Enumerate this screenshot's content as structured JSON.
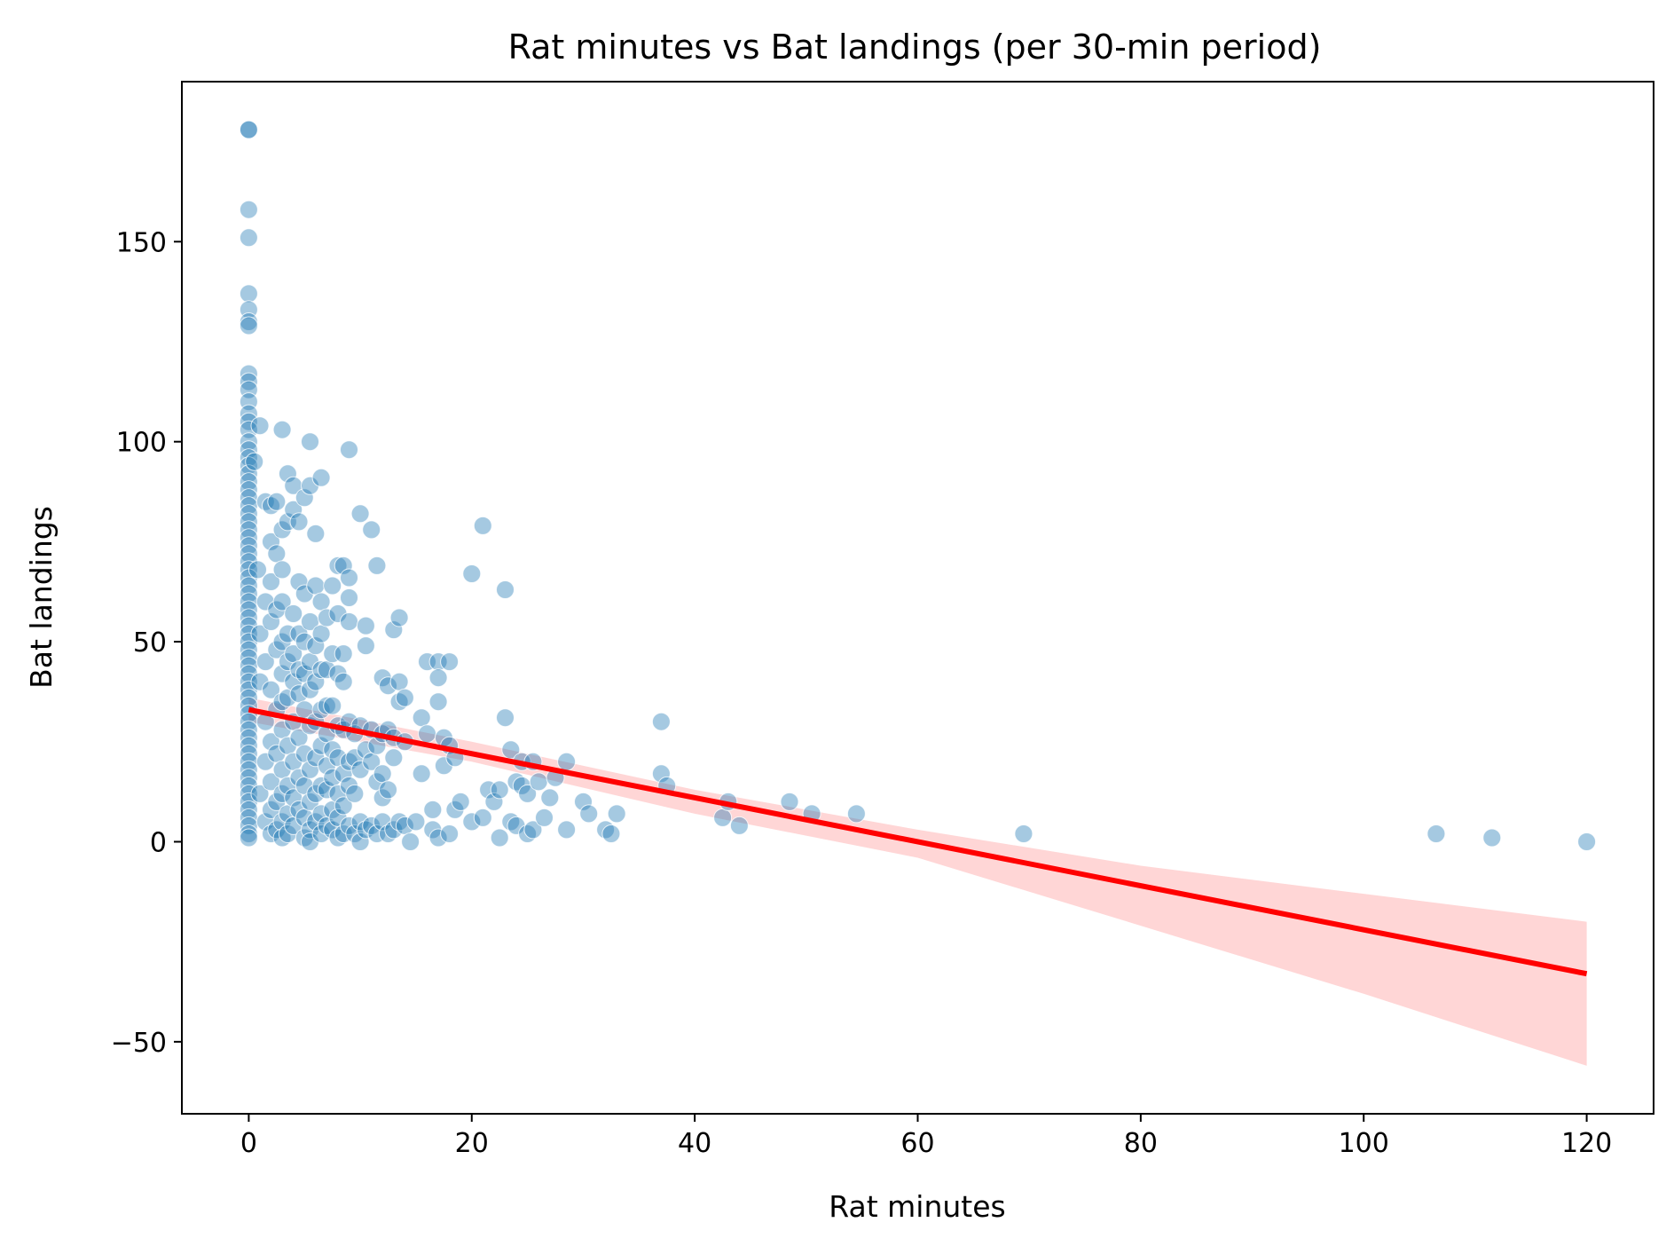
{
  "chart_data": {
    "type": "scatter",
    "title": "Rat minutes vs Bat landings (per 30-min period)",
    "xlabel": "Rat minutes",
    "ylabel": "Bat landings",
    "xlim": [
      -6,
      126
    ],
    "ylim": [
      -68,
      190
    ],
    "xticks": [
      0,
      20,
      40,
      60,
      80,
      100,
      120
    ],
    "yticks": [
      -50,
      0,
      50,
      100,
      150
    ],
    "ytick_labels": [
      "−50",
      "0",
      "50",
      "100",
      "150"
    ],
    "grid": false,
    "colors": {
      "points": "#1f77b4",
      "regression_line": "#ff0000",
      "confidence_band": "#ffcccc"
    },
    "regression": {
      "x": [
        0,
        120
      ],
      "y": [
        33,
        -33
      ],
      "ci_upper": [
        [
          0,
          36
        ],
        [
          20,
          25
        ],
        [
          40,
          13
        ],
        [
          60,
          3
        ],
        [
          80,
          -6
        ],
        [
          100,
          -13
        ],
        [
          120,
          -20
        ]
      ],
      "ci_lower": [
        [
          0,
          30
        ],
        [
          20,
          20
        ],
        [
          40,
          7
        ],
        [
          60,
          -4
        ],
        [
          80,
          -21
        ],
        [
          100,
          -38
        ],
        [
          120,
          -56
        ]
      ]
    },
    "points": [
      [
        0,
        178
      ],
      [
        0,
        178
      ],
      [
        0,
        158
      ],
      [
        0,
        151
      ],
      [
        0,
        137
      ],
      [
        0,
        133
      ],
      [
        0,
        130
      ],
      [
        0,
        129
      ],
      [
        0,
        117
      ],
      [
        0,
        115
      ],
      [
        0,
        113
      ],
      [
        0,
        110
      ],
      [
        0,
        107
      ],
      [
        0,
        105
      ],
      [
        0,
        103
      ],
      [
        0,
        100
      ],
      [
        0,
        98
      ],
      [
        0,
        96
      ],
      [
        0,
        94
      ],
      [
        0,
        92
      ],
      [
        0,
        90
      ],
      [
        0,
        88
      ],
      [
        0,
        86
      ],
      [
        0,
        84
      ],
      [
        0,
        82
      ],
      [
        0,
        80
      ],
      [
        0,
        78
      ],
      [
        0,
        76
      ],
      [
        0,
        74
      ],
      [
        0,
        72
      ],
      [
        0,
        70
      ],
      [
        0,
        68
      ],
      [
        0,
        66
      ],
      [
        0,
        64
      ],
      [
        0,
        62
      ],
      [
        0,
        60
      ],
      [
        0,
        58
      ],
      [
        0,
        56
      ],
      [
        0,
        54
      ],
      [
        0,
        52
      ],
      [
        0,
        50
      ],
      [
        0,
        48
      ],
      [
        0,
        46
      ],
      [
        0,
        44
      ],
      [
        0,
        42
      ],
      [
        0,
        40
      ],
      [
        0,
        38
      ],
      [
        0,
        36
      ],
      [
        0,
        34
      ],
      [
        0,
        32
      ],
      [
        0,
        30
      ],
      [
        0,
        28
      ],
      [
        0,
        26
      ],
      [
        0,
        24
      ],
      [
        0,
        22
      ],
      [
        0,
        20
      ],
      [
        0,
        18
      ],
      [
        0,
        16
      ],
      [
        0,
        14
      ],
      [
        0,
        12
      ],
      [
        0,
        10
      ],
      [
        0,
        8
      ],
      [
        0,
        6
      ],
      [
        0,
        4
      ],
      [
        0,
        2
      ],
      [
        0,
        1
      ],
      [
        0.5,
        95
      ],
      [
        0.8,
        68
      ],
      [
        1,
        104
      ],
      [
        1,
        52
      ],
      [
        1,
        40
      ],
      [
        1,
        12
      ],
      [
        1.5,
        85
      ],
      [
        1.5,
        60
      ],
      [
        1.5,
        45
      ],
      [
        1.5,
        30
      ],
      [
        1.5,
        20
      ],
      [
        1.5,
        5
      ],
      [
        2,
        84
      ],
      [
        2,
        75
      ],
      [
        2,
        65
      ],
      [
        2,
        55
      ],
      [
        2,
        38
      ],
      [
        2,
        25
      ],
      [
        2,
        15
      ],
      [
        2,
        8
      ],
      [
        2,
        2
      ],
      [
        2.5,
        85
      ],
      [
        2.5,
        72
      ],
      [
        2.5,
        58
      ],
      [
        2.5,
        48
      ],
      [
        2.5,
        33
      ],
      [
        2.5,
        22
      ],
      [
        2.5,
        10
      ],
      [
        2.5,
        3
      ],
      [
        3,
        103
      ],
      [
        3,
        78
      ],
      [
        3,
        68
      ],
      [
        3,
        60
      ],
      [
        3,
        50
      ],
      [
        3,
        42
      ],
      [
        3,
        35
      ],
      [
        3,
        28
      ],
      [
        3,
        18
      ],
      [
        3,
        12
      ],
      [
        3,
        5
      ],
      [
        3,
        1
      ],
      [
        3.5,
        92
      ],
      [
        3.5,
        80
      ],
      [
        3.5,
        52
      ],
      [
        3.5,
        45
      ],
      [
        3.5,
        36
      ],
      [
        3.5,
        24
      ],
      [
        3.5,
        14
      ],
      [
        3.5,
        7
      ],
      [
        3.5,
        2
      ],
      [
        4,
        89
      ],
      [
        4,
        83
      ],
      [
        4,
        57
      ],
      [
        4,
        47
      ],
      [
        4,
        40
      ],
      [
        4,
        30
      ],
      [
        4,
        20
      ],
      [
        4,
        11
      ],
      [
        4,
        4
      ],
      [
        4.5,
        80
      ],
      [
        4.5,
        65
      ],
      [
        4.5,
        52
      ],
      [
        4.5,
        43
      ],
      [
        4.5,
        37
      ],
      [
        4.5,
        26
      ],
      [
        4.5,
        16
      ],
      [
        4.5,
        8
      ],
      [
        5,
        86
      ],
      [
        5,
        62
      ],
      [
        5,
        50
      ],
      [
        5,
        42
      ],
      [
        5,
        33
      ],
      [
        5,
        22
      ],
      [
        5,
        14
      ],
      [
        5,
        6
      ],
      [
        5,
        1
      ],
      [
        5.5,
        100
      ],
      [
        5.5,
        89
      ],
      [
        5.5,
        55
      ],
      [
        5.5,
        45
      ],
      [
        5.5,
        38
      ],
      [
        5.5,
        29
      ],
      [
        5.5,
        18
      ],
      [
        5.5,
        10
      ],
      [
        5.5,
        3
      ],
      [
        5.5,
        0
      ],
      [
        6,
        77
      ],
      [
        6,
        64
      ],
      [
        6,
        49
      ],
      [
        6,
        40
      ],
      [
        6,
        30
      ],
      [
        6,
        21
      ],
      [
        6,
        12
      ],
      [
        6,
        5
      ],
      [
        6.5,
        91
      ],
      [
        6.5,
        60
      ],
      [
        6.5,
        52
      ],
      [
        6.5,
        43
      ],
      [
        6.5,
        33
      ],
      [
        6.5,
        24
      ],
      [
        6.5,
        14
      ],
      [
        6.5,
        7
      ],
      [
        6.5,
        2
      ],
      [
        7,
        56
      ],
      [
        7,
        43
      ],
      [
        7,
        34
      ],
      [
        7,
        27
      ],
      [
        7,
        19
      ],
      [
        7,
        13
      ],
      [
        7,
        4
      ],
      [
        7.5,
        64
      ],
      [
        7.5,
        47
      ],
      [
        7.5,
        34
      ],
      [
        7.5,
        23
      ],
      [
        7.5,
        16
      ],
      [
        7.5,
        8
      ],
      [
        7.5,
        3
      ],
      [
        8,
        69
      ],
      [
        8,
        57
      ],
      [
        8,
        42
      ],
      [
        8,
        29
      ],
      [
        8,
        21
      ],
      [
        8,
        12
      ],
      [
        8,
        6
      ],
      [
        8,
        1
      ],
      [
        8.5,
        69
      ],
      [
        8.5,
        47
      ],
      [
        8.5,
        40
      ],
      [
        8.5,
        28
      ],
      [
        8.5,
        17
      ],
      [
        8.5,
        9
      ],
      [
        8.5,
        2
      ],
      [
        9,
        98
      ],
      [
        9,
        66
      ],
      [
        9,
        61
      ],
      [
        9,
        55
      ],
      [
        9,
        30
      ],
      [
        9,
        20
      ],
      [
        9,
        14
      ],
      [
        9,
        4
      ],
      [
        9.5,
        27
      ],
      [
        9.5,
        21
      ],
      [
        9.5,
        12
      ],
      [
        9.5,
        2
      ],
      [
        10,
        82
      ],
      [
        10,
        29
      ],
      [
        10,
        18
      ],
      [
        10,
        5
      ],
      [
        10,
        0
      ],
      [
        10.5,
        54
      ],
      [
        10.5,
        49
      ],
      [
        10.5,
        23
      ],
      [
        10.5,
        3
      ],
      [
        11,
        78
      ],
      [
        11,
        28
      ],
      [
        11,
        20
      ],
      [
        11,
        4
      ],
      [
        11.5,
        69
      ],
      [
        11.5,
        24
      ],
      [
        11.5,
        15
      ],
      [
        11.5,
        2
      ],
      [
        12,
        41
      ],
      [
        12,
        27
      ],
      [
        12,
        17
      ],
      [
        12,
        11
      ],
      [
        12,
        5
      ],
      [
        12.5,
        39
      ],
      [
        12.5,
        28
      ],
      [
        12.5,
        13
      ],
      [
        12.5,
        2
      ],
      [
        13,
        53
      ],
      [
        13,
        26
      ],
      [
        13,
        21
      ],
      [
        13,
        3
      ],
      [
        13.5,
        56
      ],
      [
        13.5,
        40
      ],
      [
        13.5,
        35
      ],
      [
        13.5,
        5
      ],
      [
        14,
        36
      ],
      [
        14,
        25
      ],
      [
        14,
        4
      ],
      [
        14.5,
        0
      ],
      [
        15,
        5
      ],
      [
        15.5,
        31
      ],
      [
        15.5,
        17
      ],
      [
        16,
        45
      ],
      [
        16,
        27
      ],
      [
        16.5,
        8
      ],
      [
        16.5,
        3
      ],
      [
        17,
        45
      ],
      [
        17,
        41
      ],
      [
        17,
        35
      ],
      [
        17,
        1
      ],
      [
        17.5,
        26
      ],
      [
        17.5,
        19
      ],
      [
        18,
        45
      ],
      [
        18,
        24
      ],
      [
        18,
        2
      ],
      [
        18.5,
        21
      ],
      [
        18.5,
        8
      ],
      [
        19,
        10
      ],
      [
        20,
        67
      ],
      [
        20,
        5
      ],
      [
        21,
        79
      ],
      [
        21,
        6
      ],
      [
        21.5,
        13
      ],
      [
        22,
        10
      ],
      [
        22.5,
        13
      ],
      [
        22.5,
        1
      ],
      [
        23,
        31
      ],
      [
        23,
        63
      ],
      [
        23.5,
        23
      ],
      [
        23.5,
        5
      ],
      [
        24,
        15
      ],
      [
        24,
        4
      ],
      [
        24.5,
        20
      ],
      [
        24.5,
        14
      ],
      [
        25,
        12
      ],
      [
        25,
        2
      ],
      [
        25.5,
        20
      ],
      [
        25.5,
        3
      ],
      [
        26,
        15
      ],
      [
        26.5,
        6
      ],
      [
        27,
        11
      ],
      [
        27.5,
        16
      ],
      [
        28.5,
        20
      ],
      [
        28.5,
        3
      ],
      [
        30,
        10
      ],
      [
        30.5,
        7
      ],
      [
        32,
        3
      ],
      [
        32.5,
        2
      ],
      [
        33,
        7
      ],
      [
        37,
        30
      ],
      [
        37,
        17
      ],
      [
        37.5,
        14
      ],
      [
        42.5,
        6
      ],
      [
        43,
        10
      ],
      [
        44,
        4
      ],
      [
        48.5,
        10
      ],
      [
        50.5,
        7
      ],
      [
        54.5,
        7
      ],
      [
        69.5,
        2
      ],
      [
        106.5,
        2
      ],
      [
        111.5,
        1
      ],
      [
        120,
        0
      ]
    ]
  }
}
